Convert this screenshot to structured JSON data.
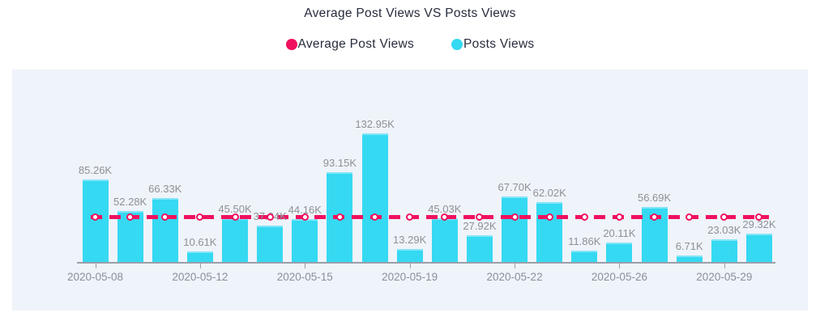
{
  "chart": {
    "title": "Average Post Views VS Posts Views",
    "legend": [
      {
        "label": "Average Post Views",
        "color": "#f0115e"
      },
      {
        "label": "Posts Views",
        "color": "#35d9f2"
      }
    ]
  },
  "chart_data": {
    "type": "bar",
    "title": "Average Post Views VS Posts Views",
    "series": [
      {
        "name": "Posts Views",
        "type": "bar",
        "color": "#35d9f2",
        "values": [
          85.26,
          52.28,
          66.33,
          10.61,
          45.5,
          37.84,
          44.16,
          93.15,
          132.95,
          13.29,
          45.03,
          27.92,
          67.7,
          62.02,
          11.86,
          20.11,
          56.69,
          6.71,
          23.03,
          29.32
        ],
        "labels": [
          "85.26K",
          "52.28K",
          "66.33K",
          "10.61K",
          "45.50K",
          "37.84K",
          "44.16K",
          "93.15K",
          "132.95K",
          "13.29K",
          "45.03K",
          "27.92K",
          "67.70K",
          "62.02K",
          "11.86K",
          "20.11K",
          "56.69K",
          "6.71K",
          "23.03K",
          "29.32K"
        ]
      },
      {
        "name": "Average Post Views",
        "type": "dashed-line-with-markers",
        "color": "#f0115e",
        "value": 46.59,
        "unit": "K"
      }
    ],
    "x_ticks": [
      {
        "label": "2020-05-08",
        "bar_index": 0
      },
      {
        "label": "2020-05-12",
        "bar_index": 3
      },
      {
        "label": "2020-05-15",
        "bar_index": 6
      },
      {
        "label": "2020-05-19",
        "bar_index": 9
      },
      {
        "label": "2020-05-22",
        "bar_index": 12
      },
      {
        "label": "2020-05-26",
        "bar_index": 15
      },
      {
        "label": "2020-05-29",
        "bar_index": 18
      }
    ],
    "ylim": [
      0,
      140
    ],
    "y_unit": "K",
    "grid": false,
    "legend_position": "top-center",
    "panel_background": "#eff3fa",
    "value_label_color": "#8e9196",
    "tick_label_color": "#8a8f9a",
    "axis_color": "#9aa0a8"
  }
}
